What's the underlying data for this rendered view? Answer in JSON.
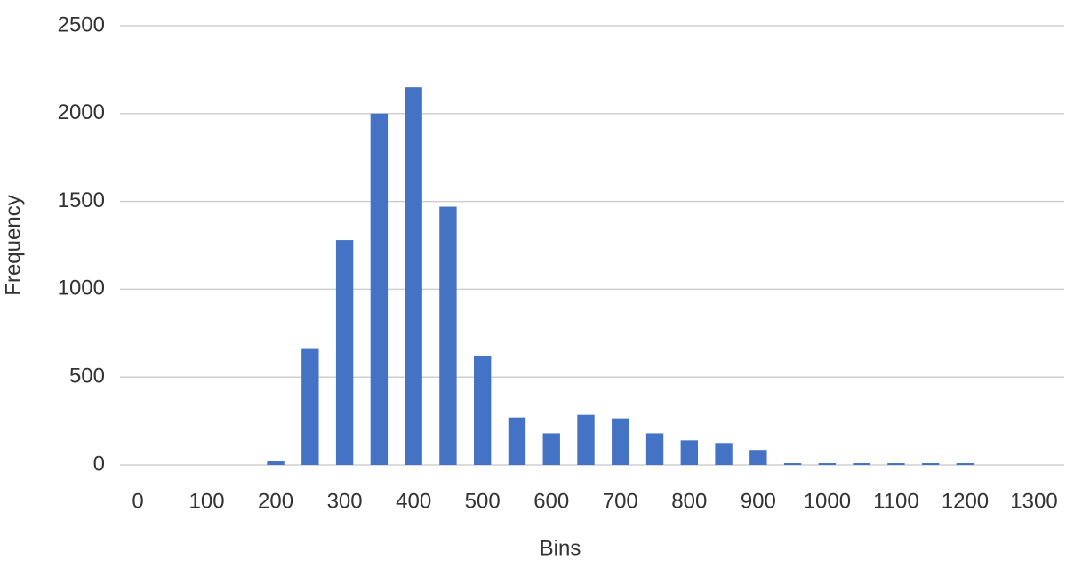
{
  "chart_data": {
    "type": "bar",
    "x_label": "Bins",
    "y_label": "Frequency",
    "categories": [
      "0",
      null,
      "100",
      null,
      "200",
      null,
      "300",
      null,
      "400",
      null,
      "500",
      null,
      "600",
      null,
      "700",
      null,
      "800",
      null,
      "900",
      null,
      "1000",
      null,
      "1100",
      null,
      "1200",
      null,
      "1300"
    ],
    "values": [
      0,
      0,
      0,
      0,
      20,
      660,
      1280,
      2000,
      2150,
      1470,
      620,
      270,
      180,
      285,
      265,
      180,
      140,
      125,
      85,
      10,
      10,
      10,
      10,
      10,
      10,
      0,
      0
    ],
    "color": "#4472c4",
    "ylim": [
      0,
      2500
    ],
    "yticks": [
      0,
      500,
      1000,
      1500,
      2000,
      2500
    ],
    "grid": true
  }
}
